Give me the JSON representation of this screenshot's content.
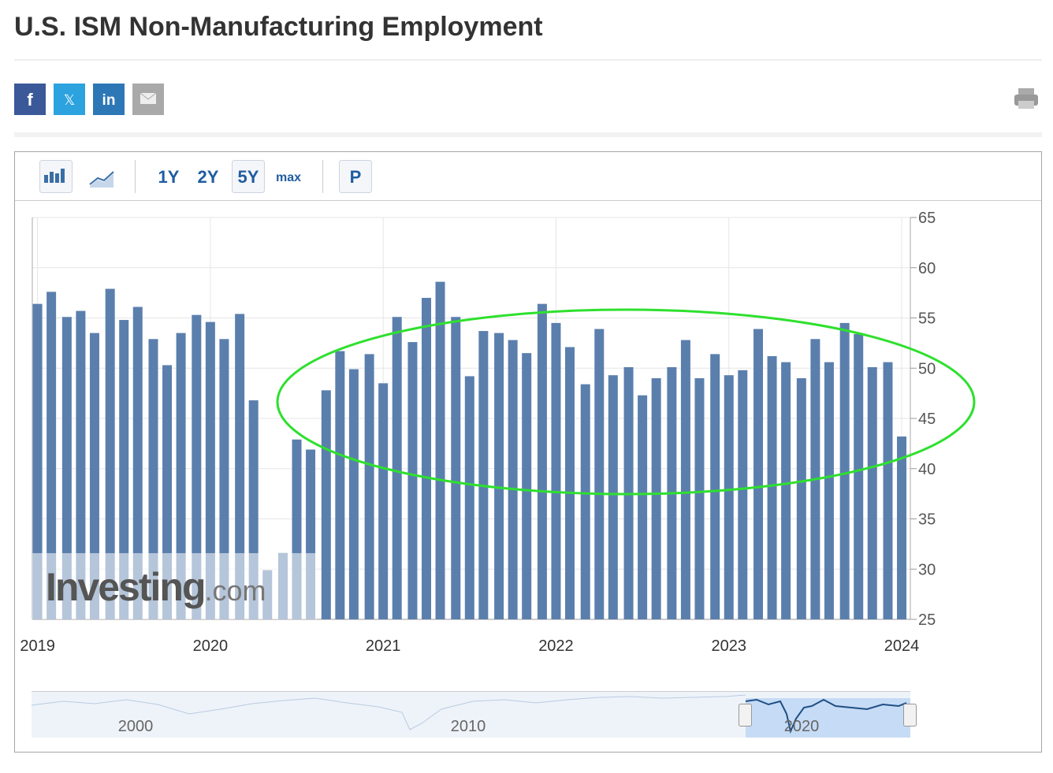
{
  "header": {
    "title": "U.S. ISM Non-Manufacturing Employment"
  },
  "share_buttons": [
    "f",
    "𝕏",
    "in"
  ],
  "toolbar": {
    "ranges": [
      "1Y",
      "2Y",
      "5Y",
      "max"
    ],
    "active_range": "5Y",
    "p_button": "P"
  },
  "watermark": [
    "Investing",
    ".com"
  ],
  "navigator": {
    "labels": [
      "2000",
      "2010",
      "2020"
    ]
  },
  "chart_data": {
    "type": "bar",
    "color": "#5b7fad",
    "x": [
      2019.0,
      2019.08,
      2019.17,
      2019.25,
      2019.33,
      2019.42,
      2019.5,
      2019.58,
      2019.67,
      2019.75,
      2019.83,
      2019.92,
      2020.0,
      2020.08,
      2020.17,
      2020.25,
      2020.33,
      2020.42,
      2020.5,
      2020.58,
      2020.67,
      2020.75,
      2020.83,
      2020.92,
      2021.0,
      2021.08,
      2021.17,
      2021.25,
      2021.33,
      2021.42,
      2021.5,
      2021.58,
      2021.67,
      2021.75,
      2021.83,
      2021.92,
      2022.0,
      2022.08,
      2022.17,
      2022.25,
      2022.33,
      2022.42,
      2022.5,
      2022.58,
      2022.67,
      2022.75,
      2022.83,
      2022.92,
      2023.0,
      2023.08,
      2023.17,
      2023.25,
      2023.33,
      2023.42,
      2023.5,
      2023.58,
      2023.67,
      2023.75,
      2023.83,
      2023.92,
      2024.0
    ],
    "values": [
      56.4,
      57.6,
      55.1,
      55.7,
      53.5,
      57.9,
      54.8,
      56.1,
      52.9,
      50.3,
      53.5,
      55.3,
      54.6,
      52.9,
      55.4,
      46.8,
      29.9,
      31.6,
      42.9,
      41.9,
      47.8,
      51.7,
      49.9,
      51.4,
      48.5,
      55.1,
      52.6,
      57.0,
      58.6,
      55.1,
      49.2,
      53.7,
      53.5,
      52.8,
      51.5,
      56.4,
      54.5,
      52.1,
      48.4,
      53.9,
      49.3,
      50.1,
      47.3,
      49.0,
      50.1,
      52.8,
      49.0,
      51.4,
      49.3,
      49.8,
      53.9,
      51.2,
      50.6,
      49.0,
      52.9,
      50.6,
      54.5,
      53.4,
      50.1,
      50.6,
      43.2
    ],
    "xlim": [
      2018.97,
      2024.05
    ],
    "xticks": [
      2019,
      2020,
      2021,
      2022,
      2023,
      2024
    ],
    "ylim": [
      25,
      65
    ],
    "yticks": [
      25,
      30,
      35,
      40,
      45,
      50,
      55,
      60,
      65
    ],
    "grid": true
  }
}
